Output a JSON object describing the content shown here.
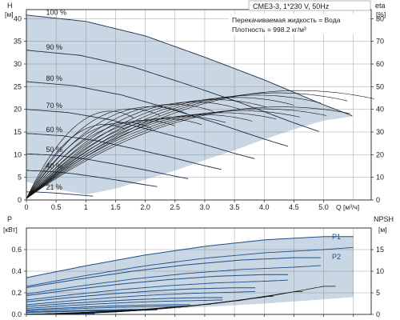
{
  "title": "CME3-3, 1*230 V, 50Hz",
  "note_liquid": "Перекачиваемая жидкость = Вода",
  "note_density": "Плотность = 998.2 кг/м³",
  "colors": {
    "region_fill": "#c9d6e3",
    "curve_dark": "#1c2f4a",
    "curve_black": "#111111",
    "curve_blue": "#1d4f8a"
  },
  "chart_data": [
    {
      "type": "line",
      "name": "head",
      "xlabel": "Q [м³/ч]",
      "ylabel_left": "H [м]",
      "ylabel_right": "eta [%]",
      "xlim": [
        0,
        5.8
      ],
      "ylim_left": [
        0,
        42
      ],
      "ylim_right": [
        0,
        84
      ],
      "x_ticks": [
        "0",
        "0.5",
        "1",
        "1.5",
        "2.0",
        "2.5",
        "3.0",
        "3.5",
        "4.0",
        "4.5",
        "5.0"
      ],
      "y_ticks_left": [
        "0",
        "5",
        "10",
        "15",
        "20",
        "25",
        "30",
        "35",
        "40"
      ],
      "y_ticks_right": [
        "0",
        "10",
        "20",
        "30",
        "40",
        "50",
        "60",
        "70",
        "80"
      ],
      "grid": true,
      "speed_labels": [
        "100 %",
        "90 %",
        "80 %",
        "70 %",
        "60 %",
        "50 %",
        "40 %",
        "21 %"
      ],
      "speed_fractions": [
        1.0,
        0.9,
        0.8,
        0.7,
        0.6,
        0.5,
        0.4,
        0.21
      ],
      "max_curve": {
        "x": [
          0,
          1,
          2,
          3,
          4,
          5,
          5.5
        ],
        "y": [
          40.8,
          39.4,
          36.2,
          31.5,
          26.5,
          21.0,
          18.5
        ]
      },
      "min_curve": {
        "x": [
          0,
          0.5,
          1,
          1.5,
          2,
          2.5
        ],
        "y": [
          4.0,
          3.0,
          1.8,
          0.8,
          0.2,
          0
        ]
      },
      "efficiency_peak_curves": [
        {
          "name": "eta_a",
          "peak_x": 4.7,
          "peak_y": 24.5
        },
        {
          "name": "eta_b",
          "peak_x": 4.4,
          "peak_y": 20.8
        }
      ]
    },
    {
      "type": "line",
      "name": "power_npsh",
      "ylabel_left": "P [кВт]",
      "ylabel_right": "NPSH [м]",
      "xlim": [
        0,
        5.8
      ],
      "ylim_left": [
        0,
        0.8
      ],
      "ylim_right": [
        0,
        20
      ],
      "y_ticks_left": [
        "0.0",
        "0.2",
        "0.4",
        "0.6"
      ],
      "y_ticks_right": [
        "0",
        "5",
        "10",
        "15"
      ],
      "series_labels": [
        "P1",
        "P2"
      ],
      "p1_top": {
        "x": [
          0,
          1,
          2,
          3,
          4,
          5,
          5.5
        ],
        "y": [
          0.34,
          0.45,
          0.55,
          0.63,
          0.69,
          0.72,
          0.72
        ]
      },
      "p2_top": {
        "x": [
          0,
          1,
          2,
          3,
          4,
          5,
          5.5
        ],
        "y": [
          0.26,
          0.36,
          0.45,
          0.52,
          0.57,
          0.6,
          0.62
        ]
      },
      "npsh": {
        "x": [
          0,
          1,
          2,
          3,
          4,
          5
        ],
        "y": [
          0,
          0.5,
          1.2,
          2.3,
          4.0,
          6.5
        ]
      }
    }
  ]
}
